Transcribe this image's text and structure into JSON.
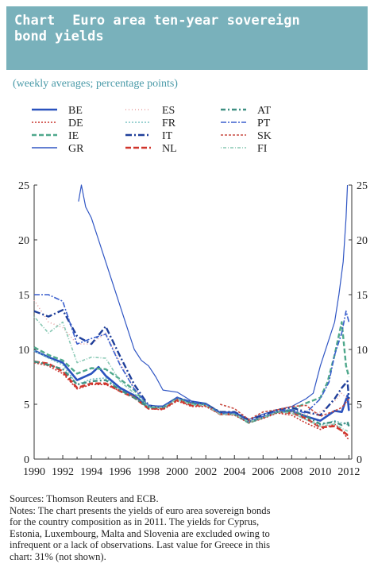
{
  "header": {
    "label": "Chart",
    "title_line1": "Euro area ten-year sovereign",
    "title_line2": "bond yields"
  },
  "subtitle": "(weekly averages; percentage points)",
  "notes": {
    "sources": "Sources: Thomson Reuters and ECB.",
    "line1": "Notes: The chart presents the yields of euro area sovereign bonds",
    "line2": "for the country composition as in 2011. The yields for Cyprus,",
    "line3": "Estonia, Luxembourg, Malta and Slovenia are excluded owing to",
    "line4": "infrequent or a lack of observations. Last value for Greece in this",
    "line5": "chart: 31% (not shown)."
  },
  "chart_data": {
    "type": "line",
    "title": "Euro area ten-year sovereign bond yields",
    "ylabel": "",
    "xlabel": "",
    "xlim": [
      1990,
      2012.2
    ],
    "ylim": [
      0,
      25
    ],
    "x_ticks": [
      "1990",
      "1992",
      "1994",
      "1996",
      "1998",
      "2000",
      "2002",
      "2004",
      "2006",
      "2008",
      "2010",
      "2012"
    ],
    "y_ticks": [
      "0",
      "5",
      "10",
      "15",
      "20",
      "25"
    ],
    "grid": false,
    "legend_placement": "top-left",
    "series": [
      {
        "name": "BE",
        "color": "#2a52be",
        "dash": "",
        "width": 2.6,
        "x": [
          1990,
          1991,
          1992,
          1993,
          1994,
          1994.5,
          1995,
          1996,
          1997,
          1998,
          1999,
          2000,
          2001,
          2002,
          2003,
          2004,
          2005,
          2006,
          2007,
          2008,
          2009,
          2010,
          2011,
          2011.5,
          2011.9,
          2012
        ],
        "y": [
          9.9,
          9.3,
          8.8,
          7.2,
          7.8,
          8.4,
          7.6,
          6.5,
          5.8,
          4.8,
          4.8,
          5.6,
          5.1,
          5.0,
          4.2,
          4.2,
          3.4,
          3.8,
          4.3,
          4.4,
          3.9,
          3.5,
          4.4,
          4.3,
          5.8,
          4.4
        ]
      },
      {
        "name": "DE",
        "color": "#c8322c",
        "dash": "2,2",
        "width": 1.6,
        "x": [
          1990,
          1991,
          1992,
          1993,
          1994,
          1995,
          1996,
          1997,
          1998,
          1999,
          2000,
          2001,
          2002,
          2003,
          2004,
          2005,
          2006,
          2007,
          2008,
          2009,
          2010,
          2011,
          2011.5,
          2011.9,
          2012
        ],
        "y": [
          8.8,
          8.5,
          7.8,
          6.4,
          6.8,
          6.8,
          6.2,
          5.7,
          4.6,
          4.5,
          5.3,
          4.8,
          4.8,
          4.1,
          4.0,
          3.3,
          3.7,
          4.2,
          4.0,
          3.3,
          2.7,
          3.2,
          2.6,
          1.9,
          1.8
        ]
      },
      {
        "name": "IE",
        "color": "#4fa88c",
        "dash": "6,3",
        "width": 2.4,
        "x": [
          1990,
          1991,
          1992,
          1993,
          1994,
          1995,
          1996,
          1997,
          1998,
          1999,
          2000,
          2001,
          2002,
          2003,
          2004,
          2005,
          2006,
          2007,
          2008,
          2009,
          2010,
          2010.5,
          2011,
          2011.5,
          2011.8,
          2012
        ],
        "y": [
          10.2,
          9.5,
          9.0,
          7.8,
          8.3,
          8.2,
          7.3,
          6.3,
          4.8,
          4.7,
          5.5,
          5.0,
          5.0,
          4.1,
          4.1,
          3.3,
          3.8,
          4.3,
          4.5,
          5.1,
          5.6,
          7.0,
          9.5,
          12.5,
          8.5,
          7.5
        ]
      },
      {
        "name": "GR",
        "color": "#3056c4",
        "dash": "",
        "width": 1.2,
        "x": [
          1993.1,
          1993.3,
          1993.6,
          1994,
          1994.5,
          1995,
          1995.5,
          1996,
          1996.5,
          1997,
          1997.5,
          1998,
          1998.5,
          1999,
          2000,
          2001,
          2002,
          2003,
          2004,
          2005,
          2006,
          2007,
          2008,
          2009,
          2009.5,
          2010,
          2010.5,
          2011,
          2011.3,
          2011.6,
          2011.8,
          2011.9
        ],
        "y": [
          23.5,
          25,
          23,
          22,
          20,
          18,
          16,
          14,
          12,
          10,
          9,
          8.5,
          7.5,
          6.3,
          6.1,
          5.3,
          5.1,
          4.3,
          4.3,
          3.6,
          4.1,
          4.5,
          4.8,
          5.5,
          6.0,
          8.5,
          10.5,
          12.5,
          15,
          18,
          22,
          25
        ]
      },
      {
        "name": "ES",
        "color": "#e8a0a0",
        "dash": "1,3",
        "width": 1.6,
        "x": [
          1990,
          1991,
          1992,
          1993,
          1994,
          1995,
          1996,
          1997,
          1998,
          1999,
          2000,
          2001,
          2002,
          2003,
          2004,
          2005,
          2006,
          2007,
          2008,
          2009,
          2010,
          2011,
          2011.5,
          2012
        ],
        "y": [
          14.5,
          12.5,
          12.0,
          10.5,
          10.5,
          11.5,
          8.8,
          6.5,
          4.9,
          4.7,
          5.5,
          5.1,
          5.0,
          4.1,
          4.1,
          3.4,
          3.8,
          4.3,
          4.4,
          4.0,
          4.3,
          5.3,
          6.0,
          5.4
        ]
      },
      {
        "name": "FR",
        "color": "#7cc4c4",
        "dash": "2,2",
        "width": 1.6,
        "x": [
          1990,
          1991,
          1992,
          1993,
          1994,
          1995,
          1996,
          1997,
          1998,
          1999,
          2000,
          2001,
          2002,
          2003,
          2004,
          2005,
          2006,
          2007,
          2008,
          2009,
          2010,
          2011,
          2011.5,
          2012
        ],
        "y": [
          9.9,
          9.2,
          8.6,
          6.8,
          7.3,
          7.4,
          6.3,
          5.6,
          4.7,
          4.6,
          5.4,
          4.9,
          4.9,
          4.1,
          4.1,
          3.4,
          3.8,
          4.3,
          4.2,
          3.6,
          3.1,
          3.5,
          3.3,
          3.1
        ]
      },
      {
        "name": "IT",
        "color": "#1f3f9a",
        "dash": "8,3,2,3",
        "width": 2.4,
        "x": [
          1990,
          1991,
          1992,
          1993,
          1994,
          1995,
          1996,
          1997,
          1998,
          1999,
          2000,
          2001,
          2002,
          2003,
          2004,
          2005,
          2006,
          2007,
          2008,
          2009,
          2010,
          2011,
          2011.5,
          2011.9,
          2012
        ],
        "y": [
          13.5,
          13.0,
          13.6,
          11.2,
          10.5,
          12.1,
          9.4,
          6.8,
          4.9,
          4.7,
          5.6,
          5.2,
          5.0,
          4.3,
          4.3,
          3.6,
          4.0,
          4.5,
          4.7,
          4.3,
          4.0,
          5.5,
          6.5,
          7.1,
          5.5
        ]
      },
      {
        "name": "NL",
        "color": "#d0352c",
        "dash": "7,3",
        "width": 2.6,
        "x": [
          1990,
          1991,
          1992,
          1993,
          1994,
          1995,
          1996,
          1997,
          1998,
          1999,
          2000,
          2001,
          2002,
          2003,
          2004,
          2005,
          2006,
          2007,
          2008,
          2009,
          2010,
          2011,
          2011.5,
          2011.9,
          2012
        ],
        "y": [
          8.9,
          8.7,
          8.0,
          6.5,
          6.9,
          6.9,
          6.2,
          5.6,
          4.6,
          4.6,
          5.4,
          4.9,
          4.9,
          4.1,
          4.1,
          3.4,
          3.8,
          4.3,
          4.2,
          3.7,
          2.9,
          3.0,
          2.6,
          2.2,
          2.2
        ]
      },
      {
        "name": "AT",
        "color": "#3f8f82",
        "dash": "6,3,2,3",
        "width": 2.4,
        "x": [
          1990,
          1991,
          1992,
          1993,
          1994,
          1995,
          1996,
          1997,
          1998,
          1999,
          2000,
          2001,
          2002,
          2003,
          2004,
          2005,
          2006,
          2007,
          2008,
          2009,
          2010,
          2011,
          2011.5,
          2011.9,
          2012
        ],
        "y": [
          8.9,
          8.6,
          8.2,
          6.8,
          7.1,
          7.2,
          6.3,
          5.6,
          4.7,
          4.7,
          5.6,
          5.1,
          5.0,
          4.2,
          4.1,
          3.4,
          3.8,
          4.3,
          4.4,
          3.9,
          3.2,
          3.4,
          3.1,
          3.4,
          3.0
        ]
      },
      {
        "name": "PT",
        "color": "#3a5fcd",
        "dash": "7,2,2,2",
        "width": 1.6,
        "x": [
          1990,
          1991,
          1992,
          1993,
          1994,
          1995,
          1996,
          1997,
          1998,
          1999,
          2000,
          2001,
          2002,
          2003,
          2004,
          2005,
          2006,
          2007,
          2008,
          2009,
          2010,
          2010.6,
          2011,
          2011.5,
          2011.8,
          2012
        ],
        "y": [
          15.0,
          15.0,
          14.4,
          10.5,
          11.0,
          11.4,
          8.6,
          6.4,
          4.9,
          4.8,
          5.6,
          5.2,
          5.0,
          4.2,
          4.2,
          3.4,
          3.9,
          4.4,
          4.5,
          4.2,
          5.5,
          7.0,
          9.5,
          11.5,
          13.5,
          12.5
        ]
      },
      {
        "name": "SK",
        "color": "#c84a40",
        "dash": "3,2",
        "width": 1.6,
        "x": [
          2003,
          2004,
          2005,
          2006,
          2007,
          2008,
          2009,
          2010,
          2011,
          2011.5,
          2012
        ],
        "y": [
          5.0,
          4.6,
          3.6,
          4.3,
          4.5,
          4.8,
          4.9,
          3.9,
          4.4,
          4.7,
          5.5
        ]
      },
      {
        "name": "FI",
        "color": "#88c8b4",
        "dash": "1,2,4,2",
        "width": 1.6,
        "x": [
          1990,
          1991,
          1992,
          1993,
          1994,
          1995,
          1996,
          1997,
          1998,
          1999,
          2000,
          2001,
          2002,
          2003,
          2004,
          2005,
          2006,
          2007,
          2008,
          2009,
          2010,
          2011,
          2011.5,
          2012
        ],
        "y": [
          13.0,
          11.5,
          12.5,
          8.8,
          9.3,
          9.2,
          7.1,
          6.0,
          4.8,
          4.7,
          5.5,
          5.0,
          4.9,
          4.1,
          4.1,
          3.4,
          3.8,
          4.3,
          4.2,
          3.6,
          3.0,
          3.2,
          2.8,
          2.5
        ]
      }
    ]
  }
}
